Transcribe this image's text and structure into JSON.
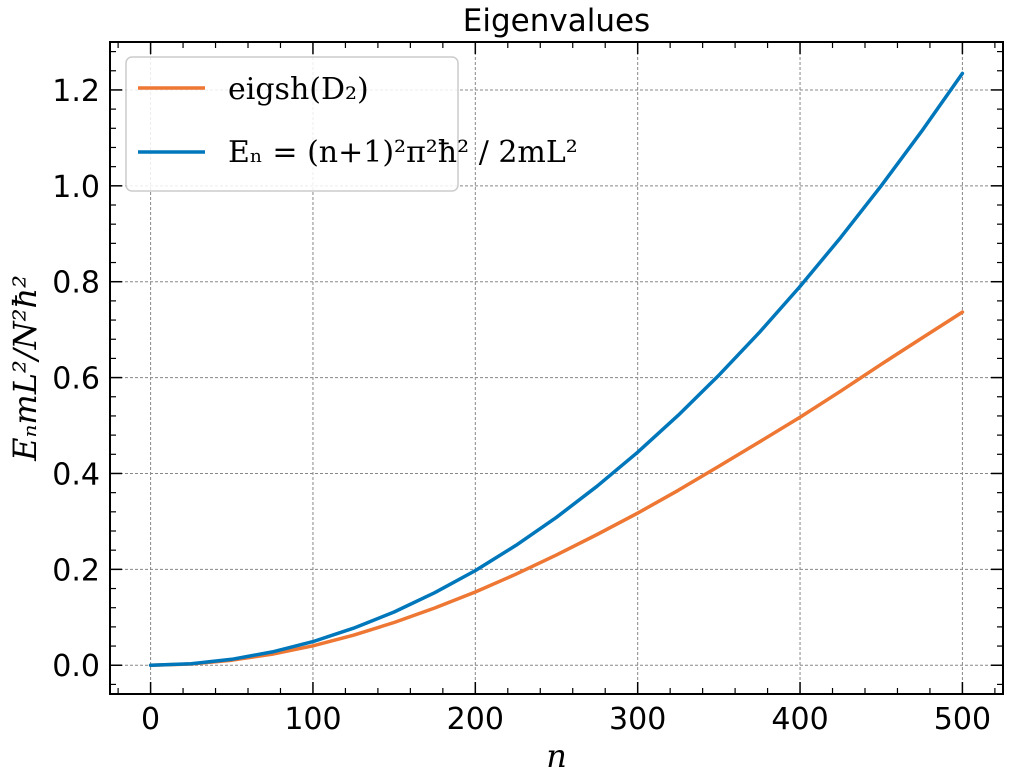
{
  "chart_data": {
    "type": "line",
    "title": "Eigenvalues",
    "xlabel": "n",
    "ylabel": "EₙmL²/N²ħ²",
    "xlim": [
      -25,
      525
    ],
    "ylim": [
      -0.06,
      1.3
    ],
    "xticks": [
      0,
      100,
      200,
      300,
      400,
      500
    ],
    "xtick_labels": [
      "0",
      "100",
      "200",
      "300",
      "400",
      "500"
    ],
    "yticks": [
      0.0,
      0.2,
      0.4,
      0.6,
      0.8,
      1.0,
      1.2
    ],
    "ytick_labels": [
      "0.0",
      "0.2",
      "0.4",
      "0.6",
      "0.8",
      "1.0",
      "1.2"
    ],
    "grid": true,
    "legend_position": "top-left",
    "series": [
      {
        "name": "eigsh(D₂)",
        "color": "#ee7733",
        "x": [
          0,
          25,
          50,
          75,
          100,
          125,
          150,
          175,
          200,
          225,
          250,
          275,
          300,
          325,
          350,
          375,
          400,
          425,
          450,
          475,
          500
        ],
        "y": [
          0.0,
          0.0026,
          0.0104,
          0.0232,
          0.0405,
          0.0626,
          0.0891,
          0.1194,
          0.1528,
          0.1899,
          0.2301,
          0.2728,
          0.3173,
          0.3649,
          0.4149,
          0.4659,
          0.5173,
          0.5717,
          0.6277,
          0.6824,
          0.7367
        ]
      },
      {
        "name": "Eₙ = (n+1)²π²ħ² / 2mL²",
        "color": "#0077bb",
        "x": [
          0,
          25,
          50,
          75,
          100,
          125,
          150,
          175,
          200,
          225,
          250,
          275,
          300,
          325,
          350,
          375,
          400,
          425,
          450,
          475,
          500
        ],
        "y": [
          0.0,
          0.0031,
          0.0123,
          0.0278,
          0.0494,
          0.0772,
          0.1111,
          0.1512,
          0.1975,
          0.25,
          0.3086,
          0.3734,
          0.4444,
          0.5216,
          0.6049,
          0.6944,
          0.7901,
          0.892,
          1.0,
          1.1142,
          1.2346
        ]
      }
    ]
  }
}
